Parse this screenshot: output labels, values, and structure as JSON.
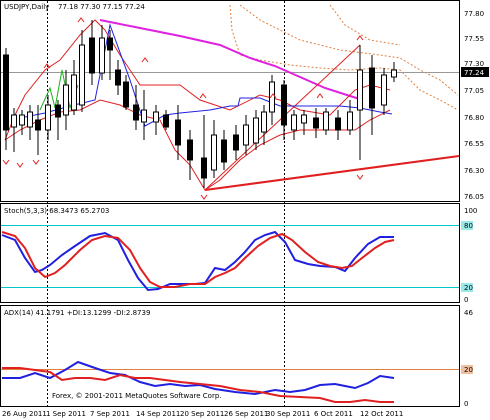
{
  "symbol": "USDJPY,Daily",
  "ohlc": "77.18 77.30 77.15 77.24",
  "price_axis": [
    "77.80",
    "77.55",
    "77.30",
    "77.05",
    "76.80",
    "76.55",
    "76.30",
    "76.05"
  ],
  "current_price": "77.24",
  "stoch": {
    "label": "Stoch(5,3,3) 68.3473 65.2703",
    "axis": [
      "100",
      "80",
      "20",
      "0"
    ]
  },
  "adx": {
    "label": "ADX(14) 41.1791 +DI:13.1299 -DI:2.8739",
    "axis": [
      "46",
      "20",
      "0"
    ]
  },
  "copyright": "Forex, © 2001-2011 MetaQuotes Software Corp.",
  "dates": [
    "26 Aug 2011",
    "1 Sep 2011",
    "7 Sep 2011",
    "14 Sep 2011",
    "20 Sep 2011",
    "26 Sep 2011",
    "30 Sep 2011",
    "6 Oct 2011",
    "12 Oct 2011"
  ],
  "colors": {
    "bg": "#ffffff",
    "grid": "#000000",
    "ma_magenta": "#e020e0",
    "red": "#e02020",
    "blue": "#2020e0",
    "green": "#20b020",
    "cyan": "#00c8c8",
    "orange": "#e08040",
    "brown": "#b04020"
  }
}
